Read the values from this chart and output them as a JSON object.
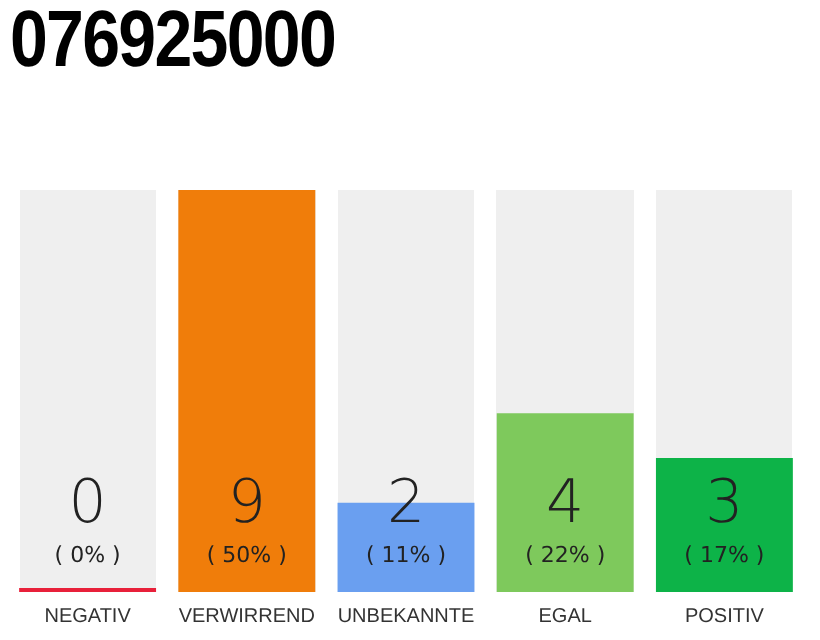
{
  "chart_data": {
    "type": "bar",
    "title": "076925000",
    "categories": [
      "NEGATIV",
      "VERWIRREND",
      "UNBEKANNTE",
      "EGAL",
      "POSITIV"
    ],
    "values": [
      0,
      9,
      2,
      4,
      3
    ],
    "colors": [
      "#e8203a",
      "#f07d0a",
      "#6a9ff0",
      "#7ec95c",
      "#0db348"
    ],
    "data_labels": true,
    "grid": false,
    "legend": false,
    "annotations": [
      "( 0% )",
      "( 50% )",
      "( 11% )",
      "( 22% )",
      "( 17% )"
    ]
  }
}
